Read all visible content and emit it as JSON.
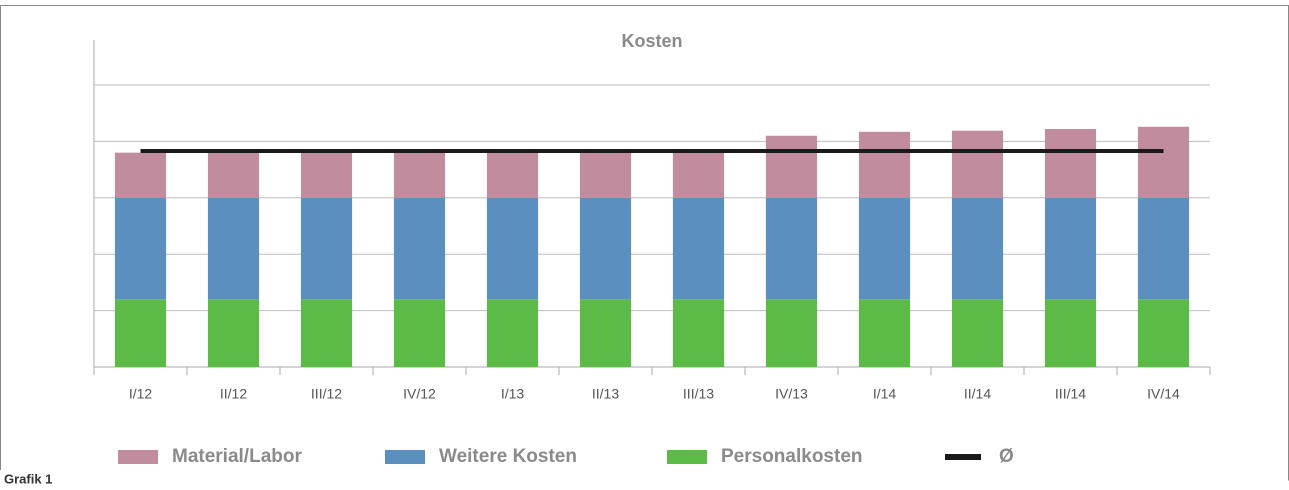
{
  "chart_data": {
    "type": "bar",
    "stacked": true,
    "title": "Kosten",
    "caption": "Grafik 1",
    "categories": [
      "I/12",
      "II/12",
      "III/12",
      "IV/12",
      "I/13",
      "II/13",
      "III/13",
      "IV/13",
      "I/14",
      "II/14",
      "III/14",
      "IV/14"
    ],
    "series": [
      {
        "name": "Material/Labor",
        "color": "#c08c9e",
        "values": [
          0.8,
          0.83,
          0.82,
          0.82,
          0.82,
          0.83,
          0.82,
          1.1,
          1.17,
          1.19,
          1.22,
          1.26
        ]
      },
      {
        "name": "Weitere Kosten",
        "color": "#5b8fc0",
        "values": [
          1.8,
          1.8,
          1.8,
          1.8,
          1.8,
          1.8,
          1.8,
          1.8,
          1.8,
          1.8,
          1.8,
          1.8
        ]
      },
      {
        "name": "Personalkosten",
        "color": "#5cbb46",
        "values": [
          1.2,
          1.2,
          1.2,
          1.2,
          1.2,
          1.2,
          1.2,
          1.2,
          1.2,
          1.2,
          1.2,
          1.2
        ]
      },
      {
        "name": "Ø",
        "type": "line",
        "color": "#1a1a1a",
        "values": [
          3.83,
          3.83,
          3.83,
          3.83,
          3.83,
          3.83,
          3.83,
          3.83,
          3.83,
          3.83,
          3.83,
          3.83
        ]
      }
    ],
    "ylim": [
      0,
      5
    ],
    "yticks": [
      0,
      1,
      2,
      3,
      4,
      5
    ],
    "grid": true,
    "legend": "bottom"
  }
}
